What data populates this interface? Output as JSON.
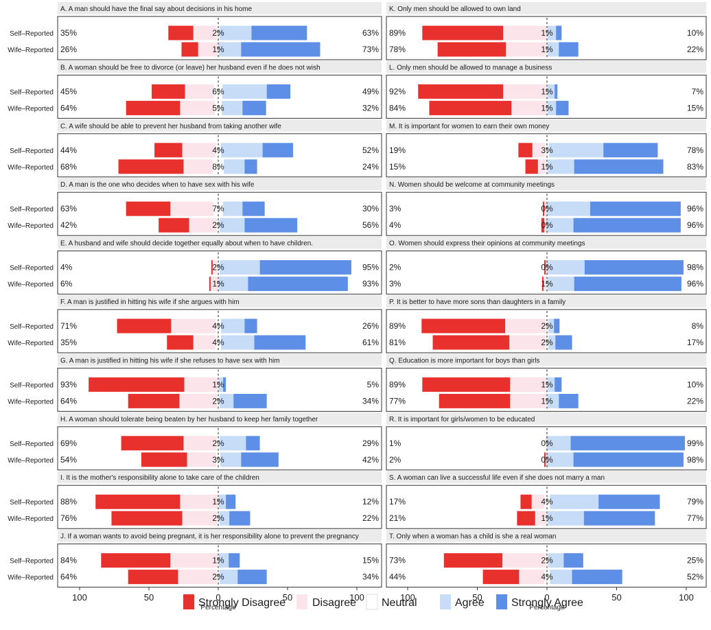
{
  "chart_data": {
    "type": "bar",
    "subtype": "diverging-stacked-likert",
    "xlabel": "Percentage",
    "xlim": [
      -100,
      100
    ],
    "x_ticks": [
      "100",
      "50",
      "0",
      "50",
      "100"
    ],
    "row_labels": [
      "Self–Reported",
      "Wife–Reported"
    ],
    "legend": {
      "position": "bottom",
      "items": [
        {
          "name": "Strongly Disagree",
          "color": "#e8312d"
        },
        {
          "name": "Disagree",
          "color": "#fbe4ea"
        },
        {
          "name": "Neutral",
          "color": "#ffffff"
        },
        {
          "name": "Agree",
          "color": "#c6dcf7"
        },
        {
          "name": "Strongly Agree",
          "color": "#5d8fe6"
        }
      ]
    },
    "panels": [
      {
        "title": "A. A man should have the final say about decisions in his home",
        "rows": [
          {
            "left": "35%",
            "neutral": "2%",
            "right": "63%",
            "sd": 18,
            "d": 17,
            "n": 2,
            "a": 23,
            "sa": 40
          },
          {
            "left": "26%",
            "neutral": "1%",
            "right": "73%",
            "sd": 12,
            "d": 14,
            "n": 1,
            "a": 16,
            "sa": 57
          }
        ]
      },
      {
        "title": "B. A woman should be free to divorce (or leave) her husband even if he does not wish",
        "rows": [
          {
            "left": "45%",
            "neutral": "6%",
            "right": "49%",
            "sd": 24,
            "d": 21,
            "n": 6,
            "a": 32,
            "sa": 17
          },
          {
            "left": "64%",
            "neutral": "5%",
            "right": "32%",
            "sd": 39,
            "d": 25,
            "n": 5,
            "a": 15,
            "sa": 17
          }
        ]
      },
      {
        "title": "C. A wife should be able to prevent her husband from taking another wife",
        "rows": [
          {
            "left": "44%",
            "neutral": "4%",
            "right": "52%",
            "sd": 20,
            "d": 24,
            "n": 4,
            "a": 30,
            "sa": 22
          },
          {
            "left": "68%",
            "neutral": "8%",
            "right": "24%",
            "sd": 47,
            "d": 21,
            "n": 8,
            "a": 15,
            "sa": 9
          }
        ]
      },
      {
        "title": "D. A man is the one who decides when to have sex with his wife",
        "rows": [
          {
            "left": "63%",
            "neutral": "7%",
            "right": "30%",
            "sd": 32,
            "d": 31,
            "n": 7,
            "a": 14,
            "sa": 16
          },
          {
            "left": "42%",
            "neutral": "2%",
            "right": "56%",
            "sd": 22,
            "d": 20,
            "n": 2,
            "a": 18,
            "sa": 38
          }
        ]
      },
      {
        "title": "E. A husband and wife should decide together equally about when to have children.",
        "rows": [
          {
            "left": "4%",
            "neutral": "2%",
            "right": "95%",
            "sd": 1,
            "d": 3,
            "n": 2,
            "a": 29,
            "sa": 66
          },
          {
            "left": "6%",
            "neutral": "1%",
            "right": "93%",
            "sd": 1,
            "d": 5,
            "n": 1,
            "a": 21,
            "sa": 72
          }
        ]
      },
      {
        "title": "F. A man is justified in hitting his wife if she argues with him",
        "rows": [
          {
            "left": "71%",
            "neutral": "4%",
            "right": "26%",
            "sd": 39,
            "d": 32,
            "n": 4,
            "a": 17,
            "sa": 9
          },
          {
            "left": "35%",
            "neutral": "4%",
            "right": "61%",
            "sd": 19,
            "d": 16,
            "n": 4,
            "a": 24,
            "sa": 37
          }
        ]
      },
      {
        "title": "G. A man is justified in hitting his wife if she refuses to have sex with him",
        "rows": [
          {
            "left": "93%",
            "neutral": "1%",
            "right": "5%",
            "sd": 69,
            "d": 24,
            "n": 1,
            "a": 3,
            "sa": 2
          },
          {
            "left": "64%",
            "neutral": "2%",
            "right": "34%",
            "sd": 37,
            "d": 27,
            "n": 2,
            "a": 10,
            "sa": 24
          }
        ]
      },
      {
        "title": "H. A woman should tolerate being beaten by her husband to keep her family together",
        "rows": [
          {
            "left": "69%",
            "neutral": "2%",
            "right": "29%",
            "sd": 45,
            "d": 24,
            "n": 2,
            "a": 19,
            "sa": 10
          },
          {
            "left": "54%",
            "neutral": "3%",
            "right": "42%",
            "sd": 33,
            "d": 21,
            "n": 3,
            "a": 15,
            "sa": 27
          }
        ]
      },
      {
        "title": "I. It is the mother's responsibility alone to take care of the children",
        "rows": [
          {
            "left": "88%",
            "neutral": "1%",
            "right": "12%",
            "sd": 61,
            "d": 27,
            "n": 1,
            "a": 5,
            "sa": 7
          },
          {
            "left": "76%",
            "neutral": "2%",
            "right": "22%",
            "sd": 51,
            "d": 25,
            "n": 2,
            "a": 7,
            "sa": 15
          }
        ]
      },
      {
        "title": "J. If a woman wants to avoid being pregnant, it is her responsibility alone to prevent the pregnancy",
        "rows": [
          {
            "left": "84%",
            "neutral": "1%",
            "right": "15%",
            "sd": 50,
            "d": 34,
            "n": 1,
            "a": 7,
            "sa": 8
          },
          {
            "left": "64%",
            "neutral": "2%",
            "right": "34%",
            "sd": 36,
            "d": 28,
            "n": 2,
            "a": 13,
            "sa": 21
          }
        ]
      },
      {
        "title": "K. Only men should be allowed to own land",
        "rows": [
          {
            "left": "89%",
            "neutral": "1%",
            "right": "10%",
            "sd": 58,
            "d": 31,
            "n": 1,
            "a": 6,
            "sa": 4
          },
          {
            "left": "78%",
            "neutral": "1%",
            "right": "22%",
            "sd": 49,
            "d": 29,
            "n": 1,
            "a": 8,
            "sa": 14
          }
        ]
      },
      {
        "title": "L. Only men should be allowed to manage a business",
        "rows": [
          {
            "left": "92%",
            "neutral": "1%",
            "right": "7%",
            "sd": 61,
            "d": 31,
            "n": 1,
            "a": 5,
            "sa": 2
          },
          {
            "left": "84%",
            "neutral": "1%",
            "right": "15%",
            "sd": 59,
            "d": 25,
            "n": 1,
            "a": 6,
            "sa": 9
          }
        ]
      },
      {
        "title": "M. It is important for women to earn their own money",
        "rows": [
          {
            "left": "19%",
            "neutral": "3%",
            "right": "78%",
            "sd": 10,
            "d": 9,
            "n": 3,
            "a": 39,
            "sa": 39
          },
          {
            "left": "15%",
            "neutral": "1%",
            "right": "83%",
            "sd": 9,
            "d": 6,
            "n": 1,
            "a": 19,
            "sa": 64
          }
        ]
      },
      {
        "title": "N. Women should be welcome at community meetings",
        "rows": [
          {
            "left": "3%",
            "neutral": "0%",
            "right": "96%",
            "sd": 1,
            "d": 2,
            "n": 0,
            "a": 31,
            "sa": 65
          },
          {
            "left": "4%",
            "neutral": "0%",
            "right": "96%",
            "sd": 2,
            "d": 2,
            "n": 0,
            "a": 19,
            "sa": 77
          }
        ]
      },
      {
        "title": "O. Women should express their opinions at community meetings",
        "rows": [
          {
            "left": "2%",
            "neutral": "0%",
            "right": "98%",
            "sd": 1,
            "d": 1,
            "n": 0,
            "a": 27,
            "sa": 71
          },
          {
            "left": "3%",
            "neutral": "1%",
            "right": "96%",
            "sd": 1,
            "d": 2,
            "n": 1,
            "a": 19,
            "sa": 77
          }
        ]
      },
      {
        "title": "P. It is better to have more sons than daughters in a family",
        "rows": [
          {
            "left": "89%",
            "neutral": "2%",
            "right": "8%",
            "sd": 60,
            "d": 29,
            "n": 2,
            "a": 4,
            "sa": 4
          },
          {
            "left": "81%",
            "neutral": "2%",
            "right": "17%",
            "sd": 55,
            "d": 26,
            "n": 2,
            "a": 5,
            "sa": 12
          }
        ]
      },
      {
        "title": "Q. Education is more important for boys than girls",
        "rows": [
          {
            "left": "89%",
            "neutral": "1%",
            "right": "10%",
            "sd": 63,
            "d": 26,
            "n": 1,
            "a": 5,
            "sa": 5
          },
          {
            "left": "77%",
            "neutral": "1%",
            "right": "22%",
            "sd": 51,
            "d": 26,
            "n": 1,
            "a": 8,
            "sa": 14
          }
        ]
      },
      {
        "title": "R. It is important for girls/women to be educated",
        "rows": [
          {
            "left": "1%",
            "neutral": "0%",
            "right": "99%",
            "sd": 0,
            "d": 1,
            "n": 0,
            "a": 17,
            "sa": 82
          },
          {
            "left": "2%",
            "neutral": "0%",
            "right": "98%",
            "sd": 1,
            "d": 1,
            "n": 0,
            "a": 19,
            "sa": 79
          }
        ]
      },
      {
        "title": "S. A woman can live a successful life even if she does not marry a man",
        "rows": [
          {
            "left": "17%",
            "neutral": "4%",
            "right": "79%",
            "sd": 8,
            "d": 9,
            "n": 4,
            "a": 35,
            "sa": 44
          },
          {
            "left": "21%",
            "neutral": "1%",
            "right": "77%",
            "sd": 13,
            "d": 8,
            "n": 1,
            "a": 26,
            "sa": 51
          }
        ]
      },
      {
        "title": "T. Only when a woman has a child is she a real woman",
        "rows": [
          {
            "left": "73%",
            "neutral": "2%",
            "right": "25%",
            "sd": 42,
            "d": 31,
            "n": 2,
            "a": 11,
            "sa": 14
          },
          {
            "left": "44%",
            "neutral": "4%",
            "right": "52%",
            "sd": 26,
            "d": 18,
            "n": 4,
            "a": 16,
            "sa": 36
          }
        ]
      }
    ]
  }
}
